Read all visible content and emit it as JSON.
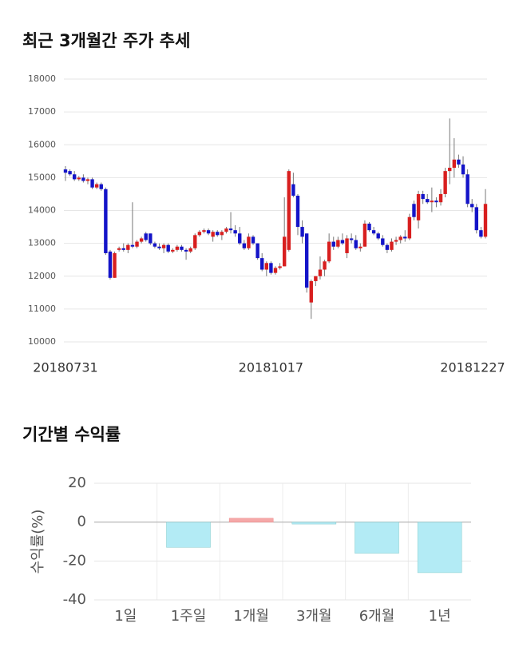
{
  "chart_data": [
    {
      "type": "candlestick",
      "title": "최근 3개월간 주가 추세",
      "up_color": "#d81f1f",
      "down_color": "#1414c8",
      "categories": [
        "20180731",
        null,
        null,
        null,
        null,
        null,
        null,
        null,
        null,
        null,
        null,
        null,
        null,
        null,
        null,
        null,
        null,
        null,
        null,
        null,
        null,
        null,
        null,
        null,
        null,
        null,
        null,
        null,
        null,
        null,
        null,
        null,
        null,
        null,
        null,
        null,
        null,
        null,
        null,
        null,
        null,
        null,
        null,
        null,
        null,
        null,
        "20181017",
        null,
        null,
        null,
        null,
        null,
        null,
        null,
        null,
        null,
        null,
        null,
        null,
        null,
        null,
        null,
        null,
        null,
        null,
        null,
        null,
        null,
        null,
        null,
        null,
        null,
        null,
        null,
        null,
        null,
        null,
        null,
        null,
        null,
        null,
        null,
        null,
        null,
        null,
        null,
        null,
        null,
        null,
        null,
        null,
        null,
        null,
        null,
        "20181227"
      ],
      "candles": [
        [
          15250,
          15350,
          14900,
          15150
        ],
        [
          15200,
          15250,
          15050,
          15100
        ],
        [
          15100,
          15200,
          14900,
          14950
        ],
        [
          14950,
          15050,
          14900,
          15000
        ],
        [
          15000,
          15100,
          14850,
          14900
        ],
        [
          14900,
          15000,
          14800,
          14950
        ],
        [
          14950,
          15000,
          14650,
          14700
        ],
        [
          14700,
          14850,
          14650,
          14800
        ],
        [
          14800,
          14850,
          14600,
          14650
        ],
        [
          14650,
          14700,
          12650,
          12700
        ],
        [
          12750,
          12800,
          11900,
          11950
        ],
        [
          11950,
          12750,
          11950,
          12700
        ],
        [
          12800,
          12900,
          12750,
          12850
        ],
        [
          12850,
          13000,
          12750,
          12800
        ],
        [
          12800,
          13000,
          12700,
          12950
        ],
        [
          12950,
          14250,
          12850,
          12900
        ],
        [
          12900,
          13100,
          12850,
          13050
        ],
        [
          13050,
          13200,
          13000,
          13150
        ],
        [
          13300,
          13350,
          13050,
          13100
        ],
        [
          13300,
          13300,
          12950,
          13000
        ],
        [
          13000,
          13050,
          12850,
          12900
        ],
        [
          12900,
          13000,
          12800,
          12850
        ],
        [
          12850,
          13000,
          12700,
          12950
        ],
        [
          12950,
          13000,
          12700,
          12750
        ],
        [
          12750,
          12850,
          12700,
          12800
        ],
        [
          12800,
          12950,
          12750,
          12900
        ],
        [
          12900,
          12950,
          12750,
          12800
        ],
        [
          12800,
          12850,
          12500,
          12750
        ],
        [
          12750,
          12900,
          12700,
          12850
        ],
        [
          12850,
          13300,
          12800,
          13250
        ],
        [
          13250,
          13400,
          13200,
          13350
        ],
        [
          13350,
          13450,
          13300,
          13400
        ],
        [
          13400,
          13450,
          13250,
          13300
        ],
        [
          13200,
          13400,
          13050,
          13350
        ],
        [
          13350,
          13400,
          13200,
          13250
        ],
        [
          13250,
          13400,
          13100,
          13350
        ],
        [
          13350,
          13500,
          13300,
          13450
        ],
        [
          13450,
          13950,
          13300,
          13400
        ],
        [
          13400,
          13550,
          13200,
          13300
        ],
        [
          13300,
          13500,
          12950,
          13000
        ],
        [
          13000,
          13100,
          12800,
          12850
        ],
        [
          12850,
          13300,
          12800,
          13200
        ],
        [
          13200,
          13250,
          12950,
          13000
        ],
        [
          13000,
          13000,
          12500,
          12550
        ],
        [
          12550,
          12700,
          12150,
          12200
        ],
        [
          12200,
          12450,
          12000,
          12400
        ],
        [
          12400,
          12450,
          12050,
          12100
        ],
        [
          12100,
          12300,
          12050,
          12250
        ],
        [
          12250,
          12400,
          12200,
          12300
        ],
        [
          12300,
          14400,
          12300,
          13200
        ],
        [
          12800,
          15250,
          12750,
          15200
        ],
        [
          14800,
          15150,
          14400,
          14450
        ],
        [
          14450,
          14500,
          13250,
          13500
        ],
        [
          13500,
          13700,
          13000,
          13200
        ],
        [
          13300,
          13300,
          11500,
          11650
        ],
        [
          11200,
          11900,
          10700,
          11850
        ],
        [
          11850,
          12000,
          11700,
          12000
        ],
        [
          12000,
          12600,
          11900,
          12200
        ],
        [
          12200,
          12500,
          12000,
          12450
        ],
        [
          12450,
          13300,
          12400,
          13050
        ],
        [
          13050,
          13200,
          12800,
          12900
        ],
        [
          12900,
          13200,
          12850,
          13100
        ],
        [
          13100,
          13300,
          12950,
          13000
        ],
        [
          12700,
          13250,
          12550,
          13150
        ],
        [
          13150,
          13300,
          13000,
          13100
        ],
        [
          13100,
          13250,
          12800,
          12850
        ],
        [
          12850,
          13000,
          12750,
          12900
        ],
        [
          12900,
          13700,
          12900,
          13600
        ],
        [
          13600,
          13650,
          13350,
          13400
        ],
        [
          13400,
          13500,
          13250,
          13300
        ],
        [
          13300,
          13350,
          13100,
          13150
        ],
        [
          13150,
          13250,
          12900,
          12950
        ],
        [
          12950,
          13000,
          12700,
          12800
        ],
        [
          12800,
          13150,
          12750,
          13050
        ],
        [
          13050,
          13200,
          12950,
          13100
        ],
        [
          13100,
          13250,
          13000,
          13200
        ],
        [
          13200,
          13400,
          13050,
          13150
        ],
        [
          13150,
          13900,
          13100,
          13800
        ],
        [
          14200,
          14300,
          13700,
          13800
        ],
        [
          13700,
          14600,
          13450,
          14500
        ],
        [
          14500,
          14600,
          14200,
          14350
        ],
        [
          14350,
          14500,
          14200,
          14250
        ],
        [
          14250,
          14700,
          13950,
          14300
        ],
        [
          14300,
          14400,
          14100,
          14250
        ],
        [
          14250,
          14650,
          14150,
          14500
        ],
        [
          14500,
          15300,
          14400,
          15200
        ],
        [
          15200,
          16800,
          14800,
          15300
        ],
        [
          15300,
          16200,
          15000,
          15550
        ],
        [
          15550,
          15700,
          15300,
          15400
        ],
        [
          15400,
          15650,
          15000,
          15100
        ],
        [
          15100,
          15250,
          14100,
          14200
        ],
        [
          14200,
          14350,
          13950,
          14100
        ],
        [
          14100,
          14200,
          13300,
          13400
        ],
        [
          13400,
          13500,
          13150,
          13200
        ],
        [
          13200,
          14650,
          13150,
          14200
        ]
      ],
      "ylim": [
        10000,
        18000
      ],
      "yticks": [
        10000,
        11000,
        12000,
        13000,
        14000,
        15000,
        16000,
        17000,
        18000
      ],
      "grid": true
    },
    {
      "type": "bar",
      "title": "기간별 수익률",
      "y_label": "수익률(%)",
      "categories": [
        "1일",
        "1주일",
        "1개월",
        "3개월",
        "6개월",
        "1년"
      ],
      "values": [
        0,
        -13,
        2,
        -1,
        -16,
        -26
      ],
      "positive_color": "#f5a8a8",
      "negative_color": "#b3ebf5",
      "ylim": [
        -40,
        20
      ],
      "yticks": [
        -40,
        -20,
        0,
        20
      ],
      "grid": true
    }
  ]
}
